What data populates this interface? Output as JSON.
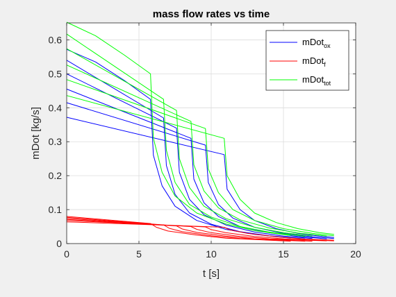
{
  "chart_data": {
    "type": "line",
    "title": "mass flow rates vs time",
    "xlabel": "t [s]",
    "ylabel": "mDot [kg/s]",
    "xlim": [
      0,
      20
    ],
    "ylim": [
      0,
      0.65
    ],
    "xticks": [
      0,
      5,
      10,
      15,
      20
    ],
    "yticks": [
      0,
      0.1,
      0.2,
      0.3,
      0.4,
      0.5,
      0.6
    ],
    "xtick_labels": [
      "0",
      "5",
      "10",
      "15",
      "20"
    ],
    "ytick_labels": [
      "0",
      "0.1",
      "0.2",
      "0.3",
      "0.4",
      "0.5",
      "0.6"
    ],
    "grid": true,
    "legend_position": "top-right",
    "legend": [
      {
        "base": "mDot",
        "sub": "ox",
        "color": "#0000ff"
      },
      {
        "base": "mDot",
        "sub": "f",
        "color": "#ff0000"
      },
      {
        "base": "mDot",
        "sub": "tot",
        "color": "#00ff00"
      }
    ],
    "colors": {
      "ox": "#0000ff",
      "f": "#ff0000",
      "tot": "#00ff00"
    },
    "series": [
      {
        "group": "ox",
        "points": [
          [
            0,
            0.372
          ],
          [
            10.9,
            0.262
          ],
          [
            11.1,
            0.16
          ],
          [
            12,
            0.1
          ],
          [
            13,
            0.068
          ],
          [
            14.5,
            0.044
          ],
          [
            16,
            0.03
          ],
          [
            17.5,
            0.022
          ],
          [
            18.5,
            0.018
          ]
        ]
      },
      {
        "group": "ox",
        "points": [
          [
            0,
            0.415
          ],
          [
            9.6,
            0.29
          ],
          [
            9.8,
            0.18
          ],
          [
            10.5,
            0.115
          ],
          [
            11.5,
            0.075
          ],
          [
            13,
            0.048
          ],
          [
            15,
            0.03
          ],
          [
            17,
            0.02
          ],
          [
            18.5,
            0.015
          ]
        ]
      },
      {
        "group": "ox",
        "points": [
          [
            0,
            0.455
          ],
          [
            8.6,
            0.31
          ],
          [
            8.8,
            0.19
          ],
          [
            9.5,
            0.12
          ],
          [
            10.5,
            0.08
          ],
          [
            12,
            0.05
          ],
          [
            14,
            0.032
          ],
          [
            16,
            0.021
          ],
          [
            18,
            0.014
          ]
        ]
      },
      {
        "group": "ox",
        "points": [
          [
            0,
            0.5
          ],
          [
            7.6,
            0.34
          ],
          [
            7.8,
            0.21
          ],
          [
            8.5,
            0.13
          ],
          [
            9.5,
            0.085
          ],
          [
            11,
            0.055
          ],
          [
            13,
            0.034
          ],
          [
            15,
            0.022
          ],
          [
            17,
            0.015
          ]
        ]
      },
      {
        "group": "ox",
        "points": [
          [
            0,
            0.54
          ],
          [
            6.7,
            0.37
          ],
          [
            6.9,
            0.23
          ],
          [
            7.5,
            0.145
          ],
          [
            8.5,
            0.09
          ],
          [
            10,
            0.057
          ],
          [
            12,
            0.035
          ],
          [
            14,
            0.023
          ],
          [
            16.5,
            0.014
          ]
        ]
      },
      {
        "group": "ox",
        "points": [
          [
            0,
            0.572
          ],
          [
            2,
            0.535
          ],
          [
            4,
            0.48
          ],
          [
            5.8,
            0.425
          ],
          [
            6,
            0.26
          ],
          [
            6.6,
            0.17
          ],
          [
            7.5,
            0.11
          ],
          [
            9,
            0.068
          ],
          [
            11,
            0.042
          ],
          [
            13,
            0.027
          ],
          [
            15.5,
            0.016
          ]
        ]
      },
      {
        "group": "f",
        "points": [
          [
            0,
            0.064
          ],
          [
            10.9,
            0.048
          ],
          [
            11.3,
            0.04
          ],
          [
            12.5,
            0.03
          ],
          [
            14.5,
            0.02
          ],
          [
            16.5,
            0.013
          ],
          [
            18.5,
            0.01
          ]
        ]
      },
      {
        "group": "f",
        "points": [
          [
            0,
            0.068
          ],
          [
            9.6,
            0.049
          ],
          [
            10,
            0.041
          ],
          [
            11,
            0.032
          ],
          [
            13,
            0.021
          ],
          [
            15,
            0.014
          ],
          [
            18.5,
            0.008
          ]
        ]
      },
      {
        "group": "f",
        "points": [
          [
            0,
            0.071
          ],
          [
            8.6,
            0.05
          ],
          [
            9,
            0.042
          ],
          [
            10,
            0.032
          ],
          [
            12,
            0.021
          ],
          [
            14,
            0.014
          ],
          [
            18,
            0.008
          ]
        ]
      },
      {
        "group": "f",
        "points": [
          [
            0,
            0.074
          ],
          [
            7.6,
            0.052
          ],
          [
            8,
            0.043
          ],
          [
            9,
            0.033
          ],
          [
            11,
            0.022
          ],
          [
            13,
            0.014
          ],
          [
            17,
            0.007
          ]
        ]
      },
      {
        "group": "f",
        "points": [
          [
            0,
            0.077
          ],
          [
            6.7,
            0.055
          ],
          [
            7.1,
            0.045
          ],
          [
            8,
            0.035
          ],
          [
            10,
            0.023
          ],
          [
            12,
            0.015
          ],
          [
            16.5,
            0.007
          ]
        ]
      },
      {
        "group": "f",
        "points": [
          [
            0,
            0.08
          ],
          [
            5.8,
            0.059
          ],
          [
            6.2,
            0.048
          ],
          [
            7,
            0.037
          ],
          [
            9,
            0.025
          ],
          [
            11,
            0.016
          ],
          [
            15.5,
            0.007
          ]
        ]
      },
      {
        "group": "tot",
        "points": [
          [
            0,
            0.436
          ],
          [
            10.9,
            0.31
          ],
          [
            11.1,
            0.2
          ],
          [
            12,
            0.13
          ],
          [
            13,
            0.09
          ],
          [
            14.5,
            0.062
          ],
          [
            16,
            0.044
          ],
          [
            17.5,
            0.032
          ],
          [
            18.5,
            0.027
          ]
        ]
      },
      {
        "group": "tot",
        "points": [
          [
            0,
            0.483
          ],
          [
            9.6,
            0.339
          ],
          [
            9.8,
            0.22
          ],
          [
            10.5,
            0.15
          ],
          [
            11.5,
            0.1
          ],
          [
            13,
            0.068
          ],
          [
            15,
            0.044
          ],
          [
            17,
            0.03
          ],
          [
            18.5,
            0.023
          ]
        ]
      },
      {
        "group": "tot",
        "points": [
          [
            0,
            0.526
          ],
          [
            8.6,
            0.36
          ],
          [
            8.8,
            0.232
          ],
          [
            9.5,
            0.155
          ],
          [
            10.5,
            0.105
          ],
          [
            12,
            0.07
          ],
          [
            14,
            0.046
          ],
          [
            16,
            0.031
          ],
          [
            18,
            0.022
          ]
        ]
      },
      {
        "group": "tot",
        "points": [
          [
            0,
            0.574
          ],
          [
            7.6,
            0.392
          ],
          [
            7.8,
            0.25
          ],
          [
            8.5,
            0.165
          ],
          [
            9.5,
            0.11
          ],
          [
            11,
            0.074
          ],
          [
            13,
            0.048
          ],
          [
            15,
            0.032
          ],
          [
            17,
            0.022
          ]
        ]
      },
      {
        "group": "tot",
        "points": [
          [
            0,
            0.617
          ],
          [
            6.7,
            0.425
          ],
          [
            6.9,
            0.275
          ],
          [
            7.5,
            0.18
          ],
          [
            8.5,
            0.115
          ],
          [
            10,
            0.078
          ],
          [
            12,
            0.05
          ],
          [
            14,
            0.034
          ],
          [
            16.5,
            0.021
          ]
        ]
      },
      {
        "group": "tot",
        "points": [
          [
            0,
            0.652
          ],
          [
            2,
            0.612
          ],
          [
            4,
            0.555
          ],
          [
            5.8,
            0.5
          ],
          [
            6,
            0.31
          ],
          [
            6.6,
            0.21
          ],
          [
            7.5,
            0.14
          ],
          [
            9,
            0.09
          ],
          [
            11,
            0.058
          ],
          [
            13,
            0.038
          ],
          [
            15.5,
            0.024
          ]
        ]
      }
    ]
  }
}
